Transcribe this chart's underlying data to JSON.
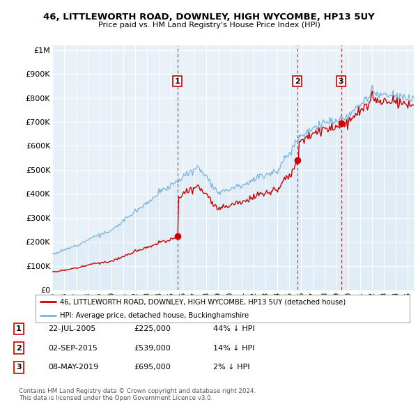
{
  "title": "46, LITTLEWORTH ROAD, DOWNLEY, HIGH WYCOMBE, HP13 5UY",
  "subtitle": "Price paid vs. HM Land Registry's House Price Index (HPI)",
  "hpi_color": "#7bb3d9",
  "hpi_fill_color": "#d0e8f5",
  "price_color": "#cc0000",
  "plot_bg_color": "#e8f0f8",
  "ylabel_values": [
    0,
    100000,
    200000,
    300000,
    400000,
    500000,
    600000,
    700000,
    800000,
    900000,
    1000000
  ],
  "ylabel_labels": [
    "£0",
    "£100K",
    "£200K",
    "£300K",
    "£400K",
    "£500K",
    "£600K",
    "£700K",
    "£800K",
    "£900K",
    "£1M"
  ],
  "x_start_year": 1995,
  "x_end_year": 2025,
  "transactions": [
    {
      "date": 2005.55,
      "price": 225000,
      "label": "1"
    },
    {
      "date": 2015.67,
      "price": 539000,
      "label": "2"
    },
    {
      "date": 2019.36,
      "price": 695000,
      "label": "3"
    }
  ],
  "legend_line1": "46, LITTLEWORTH ROAD, DOWNLEY, HIGH WYCOMBE, HP13 5UY (detached house)",
  "legend_line2": "HPI: Average price, detached house, Buckinghamshire",
  "table_rows": [
    {
      "num": "1",
      "date": "22-JUL-2005",
      "price": "£225,000",
      "hpi": "44% ↓ HPI"
    },
    {
      "num": "2",
      "date": "02-SEP-2015",
      "price": "£539,000",
      "hpi": "14% ↓ HPI"
    },
    {
      "num": "3",
      "date": "08-MAY-2019",
      "price": "£695,000",
      "hpi": "2% ↓ HPI"
    }
  ],
  "footer": "Contains HM Land Registry data © Crown copyright and database right 2024.\nThis data is licensed under the Open Government Licence v3.0."
}
